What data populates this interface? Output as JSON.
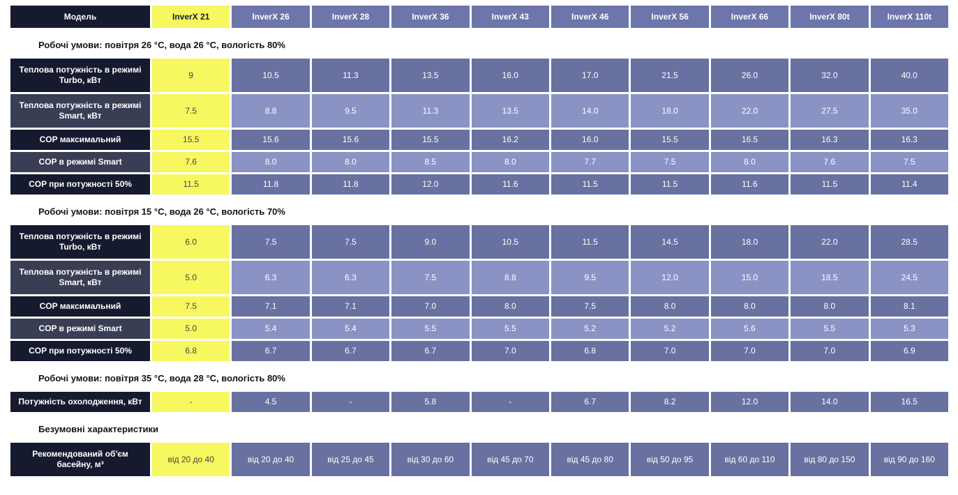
{
  "table": {
    "header": {
      "label": "Модель",
      "models": [
        "InverX 21",
        "InverX 26",
        "InverX 28",
        "InverX 36",
        "InverX 43",
        "InverX 46",
        "InverX 56",
        "InverX 66",
        "InverX 80t",
        "InverX 110t"
      ]
    },
    "highlighted_model": "InverX 21",
    "sections": [
      {
        "heading": "Робочі умови: повітря 26 °С, вода 26 °С, вологість 80%",
        "rows": [
          {
            "label": "Теплова потужність в режимі Turbo, кВт",
            "values": [
              "9",
              "10.5",
              "11.3",
              "13.5",
              "16.0",
              "17.0",
              "21.5",
              "26.0",
              "32.0",
              "40.0"
            ]
          },
          {
            "label": "Теплова потужність в режимі Smart, кВт",
            "values": [
              "7.5",
              "8.8",
              "9.5",
              "11.3",
              "13.5",
              "14.0",
              "18.0",
              "22.0",
              "27.5",
              "35.0"
            ]
          },
          {
            "label": "COP максимальний",
            "values": [
              "15.5",
              "15.6",
              "15.6",
              "15.5",
              "16.2",
              "16.0",
              "15.5",
              "16.5",
              "16.3",
              "16.3"
            ]
          },
          {
            "label": "COP в режимі Smart",
            "values": [
              "7.6",
              "8.0",
              "8.0",
              "8.5",
              "8.0",
              "7.7",
              "7.5",
              "8.0",
              "7.6",
              "7.5"
            ]
          },
          {
            "label": "COP при потужності 50%",
            "values": [
              "11.5",
              "11.8",
              "11.8",
              "12.0",
              "11.6",
              "11.5",
              "11.5",
              "11.6",
              "11.5",
              "11.4"
            ]
          }
        ]
      },
      {
        "heading": "Робочі умови: повітря 15 °С, вода 26 °С, вологість 70%",
        "rows": [
          {
            "label": "Теплова потужність в режимі Turbo, кВт",
            "values": [
              "6.0",
              "7.5",
              "7.5",
              "9.0",
              "10.5",
              "11.5",
              "14.5",
              "18.0",
              "22.0",
              "28.5"
            ]
          },
          {
            "label": "Теплова потужність в режимі Smart, кВт",
            "values": [
              "5.0",
              "6.3",
              "6.3",
              "7.5",
              "8.8",
              "9.5",
              "12.0",
              "15.0",
              "18.5",
              "24.5"
            ]
          },
          {
            "label": "COP максимальний",
            "values": [
              "7.5",
              "7.1",
              "7.1",
              "7.0",
              "8.0",
              "7.5",
              "8.0",
              "8.0",
              "8.0",
              "8.1"
            ]
          },
          {
            "label": "COP в режимі Smart",
            "values": [
              "5.0",
              "5.4",
              "5.4",
              "5.5",
              "5.5",
              "5.2",
              "5.2",
              "5.6",
              "5.5",
              "5.3"
            ]
          },
          {
            "label": "COP при потужності 50%",
            "values": [
              "6.8",
              "6.7",
              "6.7",
              "6.7",
              "7.0",
              "6.8",
              "7.0",
              "7.0",
              "7.0",
              "6.9"
            ]
          }
        ]
      },
      {
        "heading": "Робочі умови: повітря 35 °С, вода 28 °С, вологість 80%",
        "rows": [
          {
            "label": "Потужність охолодження, кВт",
            "values": [
              "-",
              "4.5",
              "-",
              "5.8",
              "-",
              "6.7",
              "8.2",
              "12.0",
              "14.0",
              "16.5"
            ]
          }
        ]
      },
      {
        "heading": "Безумовні характеристики",
        "rows": [
          {
            "label": "Рекомендований об'єм басейну, м³",
            "values": [
              "від 20 до 40",
              "від 20 до 40",
              "від 25 до 45",
              "від 30 до 60",
              "від 45 до 70",
              "від 45 до 80",
              "від 50 до 95",
              "від 60 до 110",
              "від 80 до 150",
              "від 90 до 160"
            ]
          }
        ]
      }
    ]
  },
  "colors": {
    "highlight_column": "#f7f760",
    "label_dark": "#161a2e",
    "label_slate": "#3a3e54",
    "header_purple": "#6d76aa",
    "row_purple_dark": "#68719f",
    "row_purple_light": "#8b93c4",
    "page_background": "#ffffff"
  }
}
